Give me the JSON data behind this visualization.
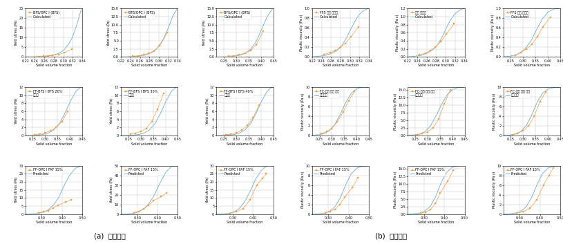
{
  "figure_width": 8.15,
  "figure_height": 3.5,
  "dpi": 100,
  "background_color": "#ffffff",
  "label_a": "(a)  항복응력",
  "label_b": "(b)  소성점도",
  "exp_color": "#f4a142",
  "pred_color": "#7ab8d9",
  "marker": "s",
  "markersize": 2.0,
  "linewidth": 0.7,
  "legend_fontsize": 3.5,
  "tick_labelsize": 3.5,
  "axis_labelsize": 3.5,
  "xlabel": "Solid volume fraction",
  "subplots": {
    "yield_r1c1": {
      "legend_exp": "BFS/OPC I (BFS)",
      "legend_pred": "Calculated",
      "xlim": [
        0.22,
        0.34
      ],
      "ylim": [
        0,
        25
      ],
      "ylabel": "Yield stress (Pa)",
      "exp_x": [
        0.245,
        0.258,
        0.268,
        0.278,
        0.29,
        0.302,
        0.318
      ],
      "exp_y": [
        0.2,
        0.4,
        0.6,
        0.9,
        1.3,
        2.2,
        4.0
      ],
      "pred_x": [
        0.22,
        0.235,
        0.248,
        0.26,
        0.272,
        0.283,
        0.293,
        0.302,
        0.311,
        0.32,
        0.329,
        0.338
      ],
      "pred_y": [
        0.02,
        0.06,
        0.14,
        0.32,
        0.65,
        1.2,
        2.2,
        3.8,
        6.5,
        10.5,
        17.0,
        24.5
      ]
    },
    "yield_r1c2": {
      "legend_exp": "BFS/OPC I (BFS)",
      "legend_pred": "Calculated",
      "xlim": [
        0.22,
        0.34
      ],
      "ylim": [
        0,
        15
      ],
      "ylabel": "Yield stress (Pa)",
      "exp_x": [
        0.245,
        0.258,
        0.268,
        0.278,
        0.29,
        0.302,
        0.318
      ],
      "exp_y": [
        0.2,
        0.4,
        0.7,
        1.1,
        1.9,
        3.5,
        7.5
      ],
      "pred_x": [
        0.22,
        0.235,
        0.248,
        0.26,
        0.272,
        0.283,
        0.293,
        0.302,
        0.311,
        0.32,
        0.329,
        0.338
      ],
      "pred_y": [
        0.02,
        0.06,
        0.14,
        0.32,
        0.65,
        1.2,
        2.2,
        3.8,
        6.0,
        9.0,
        12.5,
        14.8
      ]
    },
    "yield_r1c3": {
      "legend_exp": "BFS/OPC I (BFS)",
      "legend_pred": "Calculated",
      "xlim": [
        0.22,
        0.45
      ],
      "ylim": [
        0,
        15
      ],
      "ylabel": "Yield stress (Pa)",
      "exp_x": [
        0.268,
        0.29,
        0.312,
        0.335,
        0.358,
        0.38,
        0.41
      ],
      "exp_y": [
        0.2,
        0.4,
        0.7,
        1.2,
        2.0,
        3.8,
        8.0
      ],
      "pred_x": [
        0.22,
        0.245,
        0.268,
        0.29,
        0.312,
        0.335,
        0.358,
        0.38,
        0.402,
        0.425,
        0.445
      ],
      "pred_y": [
        0.01,
        0.03,
        0.08,
        0.2,
        0.5,
        1.1,
        2.4,
        4.8,
        8.5,
        12.5,
        14.8
      ]
    },
    "yield_r2c1": {
      "legend_exp": "FF-BFS I BFS 20%",
      "legend_pred": "예측값",
      "xlim": [
        0.22,
        0.45
      ],
      "ylim": [
        0,
        12
      ],
      "ylabel": "Yield stress (Pa)",
      "exp_x": [
        0.258,
        0.278,
        0.3,
        0.322,
        0.345,
        0.368,
        0.392
      ],
      "exp_y": [
        0.2,
        0.4,
        0.7,
        1.2,
        2.0,
        3.5,
        6.0
      ],
      "pred_x": [
        0.22,
        0.245,
        0.268,
        0.29,
        0.312,
        0.335,
        0.358,
        0.38,
        0.402,
        0.425,
        0.445
      ],
      "pred_y": [
        0.01,
        0.03,
        0.09,
        0.25,
        0.6,
        1.4,
        3.0,
        5.5,
        8.5,
        11.0,
        12.0
      ]
    },
    "yield_r2c2": {
      "legend_exp": "FF-BFS I BFS 30%",
      "legend_pred": "예측값",
      "xlim": [
        0.22,
        0.45
      ],
      "ylim": [
        0,
        12
      ],
      "ylabel": "Yield stress (Pa)",
      "exp_x": [
        0.258,
        0.278,
        0.3,
        0.322,
        0.345,
        0.368,
        0.392
      ],
      "exp_y": [
        0.3,
        0.6,
        1.0,
        1.8,
        3.5,
        6.5,
        10.5
      ],
      "pred_x": [
        0.22,
        0.245,
        0.268,
        0.29,
        0.312,
        0.335,
        0.358,
        0.38,
        0.402,
        0.425,
        0.445
      ],
      "pred_y": [
        0.01,
        0.03,
        0.09,
        0.25,
        0.6,
        1.4,
        3.0,
        5.5,
        8.5,
        11.0,
        12.0
      ]
    },
    "yield_r2c3": {
      "legend_exp": "FF-BFS I BFS 40%",
      "legend_pred": "예측값",
      "xlim": [
        0.22,
        0.45
      ],
      "ylim": [
        0,
        12
      ],
      "ylabel": "Yield stress (Pa)",
      "exp_x": [
        0.258,
        0.278,
        0.3,
        0.322,
        0.345,
        0.368,
        0.392
      ],
      "exp_y": [
        0.2,
        0.4,
        0.7,
        1.3,
        2.5,
        4.5,
        7.5
      ],
      "pred_x": [
        0.22,
        0.245,
        0.268,
        0.29,
        0.312,
        0.335,
        0.358,
        0.38,
        0.402,
        0.425,
        0.445
      ],
      "pred_y": [
        0.01,
        0.03,
        0.09,
        0.25,
        0.6,
        1.4,
        3.0,
        5.5,
        8.5,
        11.0,
        12.0
      ]
    },
    "yield_r3c1": {
      "legend_exp": "FF-OPC I FAF 15%",
      "legend_pred": "Predicted",
      "xlim": [
        0.22,
        0.5
      ],
      "ylim": [
        0,
        30
      ],
      "ylabel": "Yield stress (Pa)",
      "exp_x": [
        0.285,
        0.308,
        0.332,
        0.356,
        0.38,
        0.418,
        0.445
      ],
      "exp_y": [
        0.8,
        1.4,
        2.2,
        3.8,
        5.5,
        7.5,
        8.8
      ],
      "pred_x": [
        0.22,
        0.248,
        0.275,
        0.302,
        0.33,
        0.358,
        0.385,
        0.412,
        0.44,
        0.468,
        0.495
      ],
      "pred_y": [
        0.05,
        0.15,
        0.4,
        1.0,
        2.5,
        5.5,
        10.5,
        18.0,
        24.5,
        28.5,
        30.0
      ]
    },
    "yield_r3c2": {
      "legend_exp": "FF-OPC I FAF 15%",
      "legend_pred": "Predicted",
      "xlim": [
        0.22,
        0.5
      ],
      "ylim": [
        0,
        50
      ],
      "ylabel": "Yield stress (Pa)",
      "exp_x": [
        0.285,
        0.308,
        0.332,
        0.356,
        0.38,
        0.418,
        0.445
      ],
      "exp_y": [
        1.5,
        3.0,
        5.5,
        9.0,
        14.0,
        18.0,
        22.0
      ],
      "pred_x": [
        0.22,
        0.248,
        0.275,
        0.302,
        0.33,
        0.358,
        0.385,
        0.412,
        0.44,
        0.468,
        0.495
      ],
      "pred_y": [
        0.05,
        0.2,
        0.6,
        2.0,
        5.0,
        11.0,
        20.0,
        32.0,
        43.0,
        49.0,
        50.0
      ]
    },
    "yield_r3c3": {
      "legend_exp": "FF-OPC I FAF 15%",
      "legend_pred": "Predicted",
      "xlim": [
        0.22,
        0.5
      ],
      "ylim": [
        0,
        30
      ],
      "ylabel": "Yield stress (Pa)",
      "exp_x": [
        0.285,
        0.318,
        0.352,
        0.385,
        0.418,
        0.445,
        0.465
      ],
      "exp_y": [
        0.5,
        1.5,
        3.5,
        9.0,
        18.0,
        22.0,
        25.0
      ],
      "pred_x": [
        0.22,
        0.248,
        0.275,
        0.302,
        0.33,
        0.358,
        0.385,
        0.412,
        0.44,
        0.468,
        0.495
      ],
      "pred_y": [
        0.05,
        0.15,
        0.45,
        1.2,
        3.2,
        7.5,
        14.0,
        21.5,
        27.0,
        30.0,
        30.0
      ]
    },
    "visc_r1c1": {
      "legend_exp": "FFS 분리 분리비",
      "legend_pred": "Calculated",
      "xlim": [
        0.22,
        0.34
      ],
      "ylim": [
        0,
        1.0
      ],
      "ylabel": "Plastic viscosity (Pa s)",
      "exp_x": [
        0.245,
        0.258,
        0.268,
        0.278,
        0.29,
        0.302,
        0.318
      ],
      "exp_y": [
        0.05,
        0.09,
        0.13,
        0.19,
        0.28,
        0.42,
        0.62
      ],
      "pred_x": [
        0.22,
        0.235,
        0.248,
        0.26,
        0.272,
        0.283,
        0.293,
        0.302,
        0.311,
        0.32,
        0.329,
        0.338
      ],
      "pred_y": [
        0.005,
        0.015,
        0.035,
        0.07,
        0.13,
        0.24,
        0.4,
        0.58,
        0.75,
        0.88,
        0.96,
        1.0
      ]
    },
    "visc_r1c2": {
      "legend_exp": "분리 분리비",
      "legend_pred": "Calculated",
      "xlim": [
        0.22,
        0.34
      ],
      "ylim": [
        0,
        1.2
      ],
      "ylabel": "Plastic viscosity (Pa s)",
      "exp_x": [
        0.245,
        0.258,
        0.268,
        0.278,
        0.29,
        0.302,
        0.318
      ],
      "exp_y": [
        0.05,
        0.1,
        0.16,
        0.24,
        0.38,
        0.58,
        0.82
      ],
      "pred_x": [
        0.22,
        0.235,
        0.248,
        0.26,
        0.272,
        0.283,
        0.293,
        0.302,
        0.311,
        0.32,
        0.329,
        0.338
      ],
      "pred_y": [
        0.005,
        0.018,
        0.04,
        0.09,
        0.17,
        0.3,
        0.5,
        0.73,
        0.93,
        1.07,
        1.16,
        1.2
      ]
    },
    "visc_r1c3": {
      "legend_exp": "FFS 분리 분리비",
      "legend_pred": "Calculated",
      "xlim": [
        0.22,
        0.45
      ],
      "ylim": [
        0,
        1.0
      ],
      "ylabel": "Plastic viscosity (Pa s)",
      "exp_x": [
        0.268,
        0.29,
        0.312,
        0.335,
        0.358,
        0.38,
        0.41
      ],
      "exp_y": [
        0.04,
        0.09,
        0.16,
        0.26,
        0.42,
        0.62,
        0.82
      ],
      "pred_x": [
        0.22,
        0.245,
        0.268,
        0.29,
        0.312,
        0.335,
        0.358,
        0.38,
        0.402,
        0.425,
        0.445
      ],
      "pred_y": [
        0.005,
        0.015,
        0.04,
        0.09,
        0.19,
        0.36,
        0.6,
        0.8,
        0.93,
        0.99,
        1.0
      ]
    },
    "visc_r2c1": {
      "legend_exp": "FC-분리 분리 분리",
      "legend_pred": "소성점도",
      "xlim": [
        0.22,
        0.45
      ],
      "ylim": [
        0,
        10
      ],
      "ylabel": "Plastic viscosity (Pa s)",
      "exp_x": [
        0.258,
        0.278,
        0.3,
        0.322,
        0.345,
        0.368,
        0.392
      ],
      "exp_y": [
        0.4,
        0.8,
        1.5,
        2.8,
        4.8,
        7.2,
        9.2
      ],
      "pred_x": [
        0.22,
        0.245,
        0.268,
        0.29,
        0.312,
        0.335,
        0.358,
        0.38,
        0.402,
        0.425,
        0.445
      ],
      "pred_y": [
        0.05,
        0.15,
        0.4,
        1.0,
        2.3,
        4.5,
        7.0,
        8.8,
        9.7,
        10.0,
        10.0
      ]
    },
    "visc_r2c2": {
      "legend_exp": "FC-분리 분리 분리",
      "legend_pred": "소성점도",
      "xlim": [
        0.22,
        0.45
      ],
      "ylim": [
        0,
        16
      ],
      "ylabel": "Plastic viscosity (Pa s)",
      "exp_x": [
        0.258,
        0.278,
        0.3,
        0.322,
        0.345,
        0.368,
        0.392
      ],
      "exp_y": [
        0.3,
        0.6,
        1.2,
        2.5,
        5.5,
        10.5,
        15.0
      ],
      "pred_x": [
        0.22,
        0.245,
        0.268,
        0.29,
        0.312,
        0.335,
        0.358,
        0.38,
        0.402,
        0.425,
        0.445
      ],
      "pred_y": [
        0.05,
        0.18,
        0.5,
        1.3,
        3.2,
        6.5,
        10.5,
        13.5,
        15.2,
        15.9,
        16.0
      ]
    },
    "visc_r2c3": {
      "legend_exp": "FC-분리 분리 분리",
      "legend_pred": "소성점도",
      "xlim": [
        0.22,
        0.45
      ],
      "ylim": [
        0,
        10
      ],
      "ylabel": "Plastic viscosity (Pa s)",
      "exp_x": [
        0.258,
        0.278,
        0.3,
        0.322,
        0.345,
        0.368,
        0.392
      ],
      "exp_y": [
        0.2,
        0.5,
        1.0,
        2.0,
        4.0,
        7.0,
        9.0
      ],
      "pred_x": [
        0.22,
        0.245,
        0.268,
        0.29,
        0.312,
        0.335,
        0.358,
        0.38,
        0.402,
        0.425,
        0.445
      ],
      "pred_y": [
        0.03,
        0.1,
        0.3,
        0.8,
        2.0,
        4.2,
        7.0,
        8.8,
        9.6,
        9.9,
        10.0
      ]
    },
    "visc_r3c1": {
      "legend_exp": "FF-OPC I FAF 15%",
      "legend_pred": "Predicted",
      "xlim": [
        0.22,
        0.5
      ],
      "ylim": [
        0,
        10
      ],
      "ylabel": "Plastic viscosity (Pa s)",
      "exp_x": [
        0.285,
        0.308,
        0.332,
        0.356,
        0.38,
        0.418,
        0.445
      ],
      "exp_y": [
        0.3,
        0.5,
        1.0,
        2.0,
        3.5,
        5.5,
        7.5
      ],
      "pred_x": [
        0.22,
        0.248,
        0.275,
        0.302,
        0.33,
        0.358,
        0.385,
        0.412,
        0.44,
        0.468,
        0.495
      ],
      "pred_y": [
        0.02,
        0.06,
        0.18,
        0.5,
        1.4,
        3.3,
        6.0,
        8.3,
        9.5,
        9.9,
        10.0
      ]
    },
    "visc_r3c2": {
      "legend_exp": "FF-OPC I FAF 15%",
      "legend_pred": "Predicted",
      "xlim": [
        0.22,
        0.5
      ],
      "ylim": [
        0,
        16
      ],
      "ylabel": "Plastic viscosity (Pa s)",
      "exp_x": [
        0.285,
        0.308,
        0.332,
        0.356,
        0.38,
        0.418,
        0.445
      ],
      "exp_y": [
        0.3,
        0.7,
        1.5,
        3.5,
        7.0,
        11.0,
        14.5
      ],
      "pred_x": [
        0.22,
        0.248,
        0.275,
        0.302,
        0.33,
        0.358,
        0.385,
        0.412,
        0.44,
        0.468,
        0.495
      ],
      "pred_y": [
        0.03,
        0.1,
        0.3,
        0.9,
        2.5,
        5.8,
        10.5,
        13.8,
        15.5,
        16.0,
        16.0
      ]
    },
    "visc_r3c3": {
      "legend_exp": "FF-OPC I FAF 15%",
      "legend_pred": "Predicted",
      "xlim": [
        0.22,
        0.5
      ],
      "ylim": [
        0,
        10
      ],
      "ylabel": "Plastic viscosity (Pa s)",
      "exp_x": [
        0.285,
        0.318,
        0.352,
        0.385,
        0.418,
        0.445,
        0.465
      ],
      "exp_y": [
        0.2,
        0.5,
        1.2,
        3.0,
        6.0,
        8.0,
        9.5
      ],
      "pred_x": [
        0.22,
        0.248,
        0.275,
        0.302,
        0.33,
        0.358,
        0.385,
        0.412,
        0.44,
        0.468,
        0.495
      ],
      "pred_y": [
        0.02,
        0.06,
        0.18,
        0.5,
        1.4,
        3.3,
        6.0,
        8.3,
        9.5,
        9.9,
        10.0
      ]
    }
  }
}
